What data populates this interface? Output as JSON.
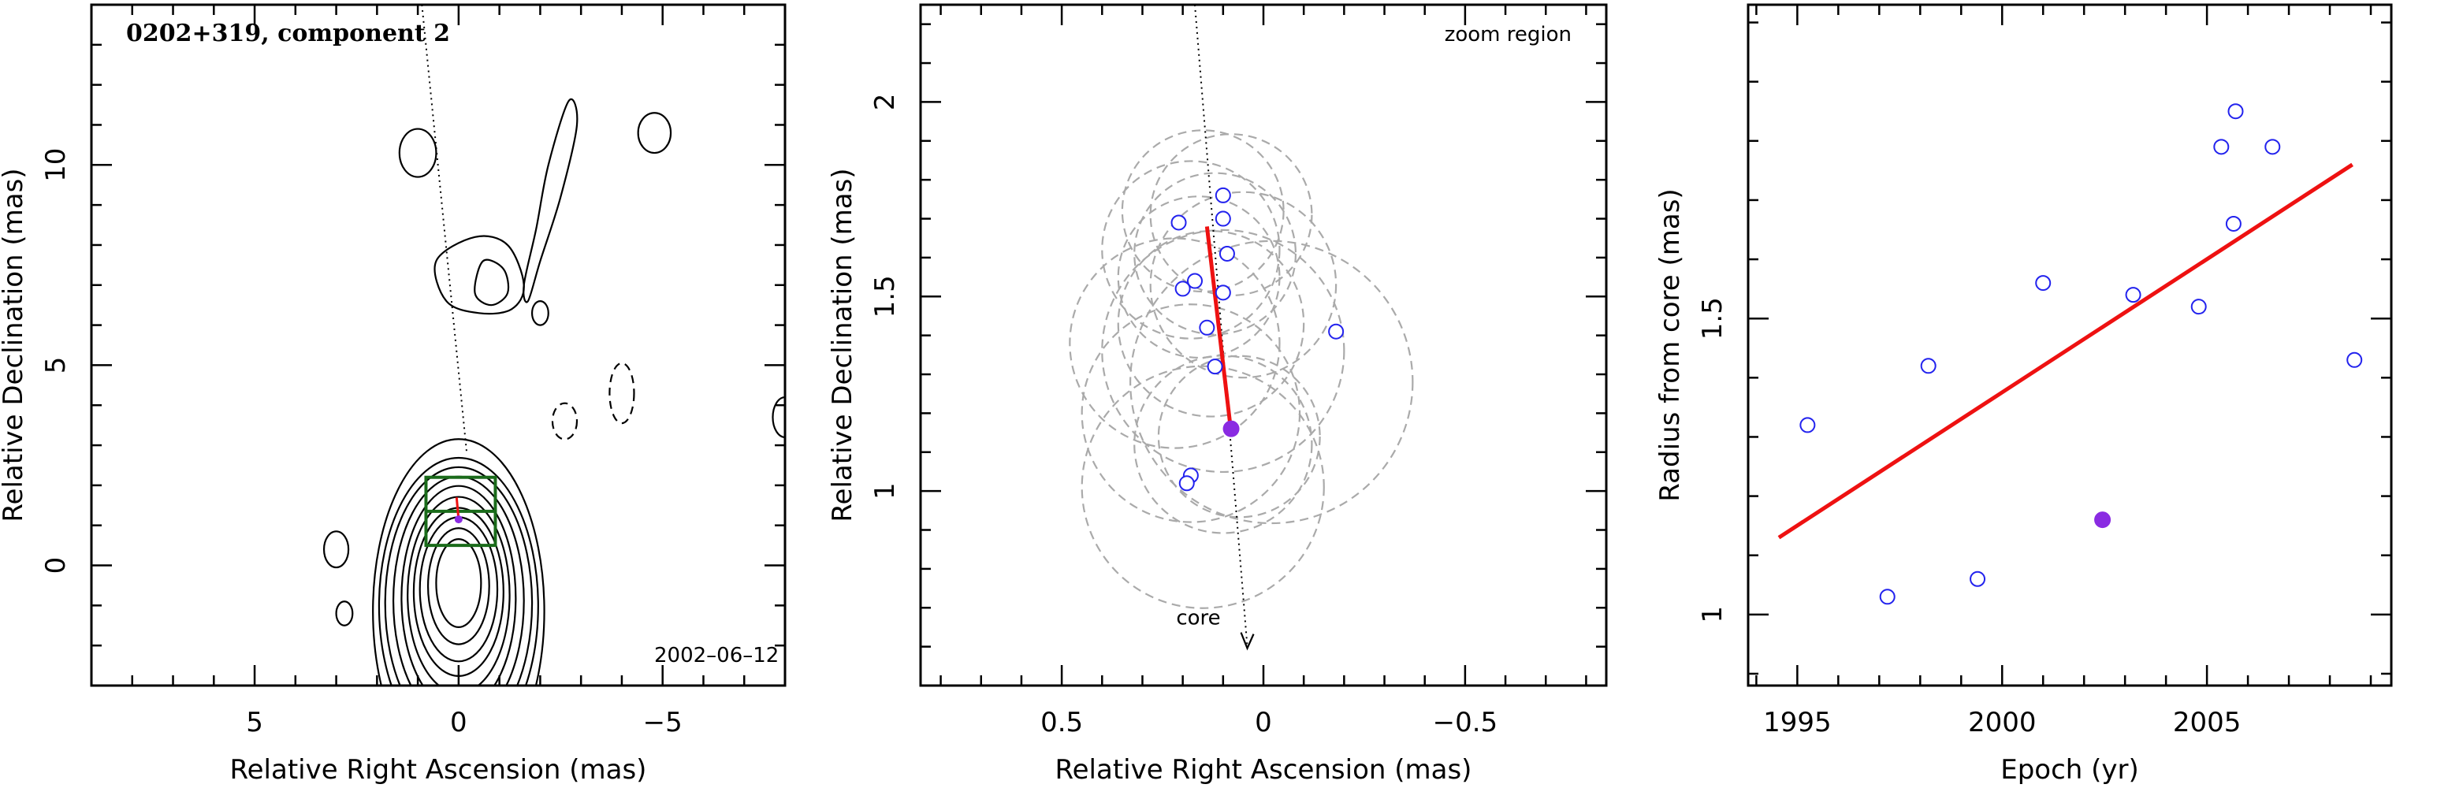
{
  "colors": {
    "contour": "#000000",
    "detection": "#2222ee",
    "highlight": "#8a2be2",
    "fit_line": "#ee1111",
    "uncertainty_circle": "#aaaaaa",
    "zoom_box": "#1a6b1a"
  },
  "chart_data": [
    {
      "type": "contour",
      "title": "0202+319, component 2",
      "annotation": "2002–06–12",
      "xlabel": "Relative Right Ascension (mas)",
      "ylabel": "Relative Declination (mas)",
      "xlim": [
        9,
        -8
      ],
      "ylim": [
        -3,
        14
      ],
      "xticks": [
        5,
        0,
        -5
      ],
      "xtick_labels": [
        "5",
        "0",
        "−5"
      ],
      "yticks": [
        0,
        5,
        10
      ],
      "ytick_labels": [
        "0",
        "5",
        "10"
      ],
      "core_contours": {
        "center": [
          0,
          -0.2
        ],
        "levels": [
          [
            0.55,
            1.1
          ],
          [
            0.75,
            1.45
          ],
          [
            0.95,
            1.8
          ],
          [
            1.1,
            2.1
          ],
          [
            1.25,
            2.45
          ],
          [
            1.4,
            2.8
          ],
          [
            1.6,
            3.1
          ],
          [
            1.8,
            3.4
          ],
          [
            1.95,
            3.7
          ],
          [
            2.1,
            4.3
          ]
        ]
      },
      "jet_contours": [
        [
          [
            0.55,
            7.6
          ],
          [
            -0.4,
            8.2
          ],
          [
            -1.2,
            8.0
          ],
          [
            -1.6,
            7.0
          ],
          [
            -1.3,
            6.4
          ],
          [
            -0.5,
            6.3
          ],
          [
            0.3,
            6.6
          ]
        ],
        [
          [
            -0.6,
            7.6
          ],
          [
            -1.1,
            7.4
          ],
          [
            -1.2,
            6.8
          ],
          [
            -0.8,
            6.5
          ],
          [
            -0.4,
            6.8
          ]
        ],
        [
          [
            -1.6,
            7.0
          ],
          [
            -1.9,
            8.4
          ],
          [
            -2.2,
            10.0
          ],
          [
            -2.7,
            11.6
          ],
          [
            -2.9,
            11.0
          ],
          [
            -2.5,
            9.2
          ],
          [
            -2.0,
            7.6
          ],
          [
            -1.7,
            6.6
          ]
        ]
      ],
      "positive_islands": [
        [
          -4.8,
          10.8,
          0.4,
          0.5
        ],
        [
          1.0,
          10.3,
          0.45,
          0.6
        ],
        [
          3.0,
          0.4,
          0.3,
          0.45
        ],
        [
          2.8,
          -1.2,
          0.2,
          0.3
        ],
        [
          -2.0,
          6.3,
          0.2,
          0.3
        ],
        [
          -8.0,
          3.7,
          0.3,
          0.5
        ]
      ],
      "negative_islands": [
        [
          -4.0,
          4.3,
          0.3,
          0.75
        ],
        [
          -2.6,
          3.6,
          0.3,
          0.45
        ]
      ],
      "zoom_box": {
        "x": [
          0.8,
          -0.9
        ],
        "y": [
          0.5,
          2.2
        ]
      },
      "jet_axis": {
        "from": [
          0.9,
          14
        ],
        "to": [
          -0.2,
          2.8
        ]
      }
    },
    {
      "type": "scatter",
      "annotation": "zoom region",
      "core_label": "core",
      "xlabel": "Relative Right Ascension (mas)",
      "ylabel": "Relative Declination (mas)",
      "xlim": [
        0.85,
        -0.85
      ],
      "ylim": [
        0.5,
        2.25
      ],
      "xticks": [
        0.5,
        0,
        -0.5
      ],
      "xtick_labels": [
        "0.5",
        "0",
        "−0.5"
      ],
      "yticks": [
        1,
        1.5,
        2
      ],
      "ytick_labels": [
        "1",
        "1.5",
        "2"
      ],
      "points": [
        {
          "x": 0.21,
          "y": 1.69
        },
        {
          "x": 0.1,
          "y": 1.76
        },
        {
          "x": 0.1,
          "y": 1.7
        },
        {
          "x": 0.09,
          "y": 1.61
        },
        {
          "x": 0.17,
          "y": 1.54
        },
        {
          "x": 0.2,
          "y": 1.52
        },
        {
          "x": 0.1,
          "y": 1.51
        },
        {
          "x": 0.14,
          "y": 1.42
        },
        {
          "x": -0.18,
          "y": 1.41
        },
        {
          "x": 0.12,
          "y": 1.32
        },
        {
          "x": 0.18,
          "y": 1.04
        },
        {
          "x": 0.19,
          "y": 1.02
        }
      ],
      "highlight": {
        "x": 0.08,
        "y": 1.16
      },
      "uncertainty_circles": [
        [
          0.15,
          1.72,
          0.2
        ],
        [
          0.08,
          1.71,
          0.2
        ],
        [
          0.18,
          1.62,
          0.22
        ],
        [
          0.12,
          1.61,
          0.2
        ],
        [
          0.16,
          1.55,
          0.2
        ],
        [
          0.05,
          1.53,
          0.23
        ],
        [
          0.13,
          1.43,
          0.23
        ],
        [
          0.22,
          1.38,
          0.26
        ],
        [
          0.1,
          1.36,
          0.3
        ],
        [
          -0.02,
          1.28,
          0.35
        ],
        [
          0.18,
          1.2,
          0.27
        ],
        [
          0.1,
          1.12,
          0.22
        ],
        [
          0.15,
          1.01,
          0.3
        ],
        [
          0.06,
          1.14,
          0.2
        ]
      ],
      "fit_line": {
        "x": [
          0.14,
          0.08
        ],
        "y": [
          1.68,
          1.15
        ]
      },
      "jet_axis": {
        "from": [
          0.17,
          2.25
        ],
        "to": [
          0.04,
          0.6
        ]
      }
    },
    {
      "type": "scatter",
      "xlabel": "Epoch (yr)",
      "ylabel": "Radius from core (mas)",
      "xlim": [
        1993.8,
        2009.5
      ],
      "ylim": [
        0.88,
        2.03
      ],
      "xticks": [
        1995,
        2000,
        2005
      ],
      "xtick_labels": [
        "1995",
        "2000",
        "2005"
      ],
      "yticks": [
        1,
        1.5
      ],
      "ytick_labels": [
        "1",
        "1.5"
      ],
      "points": [
        {
          "x": 1995.25,
          "y": 1.32
        },
        {
          "x": 1997.2,
          "y": 1.03
        },
        {
          "x": 1998.2,
          "y": 1.42
        },
        {
          "x": 1999.4,
          "y": 1.06
        },
        {
          "x": 2001.0,
          "y": 1.56
        },
        {
          "x": 2003.2,
          "y": 1.54
        },
        {
          "x": 2004.8,
          "y": 1.52
        },
        {
          "x": 2005.35,
          "y": 1.79
        },
        {
          "x": 2005.7,
          "y": 1.85
        },
        {
          "x": 2005.65,
          "y": 1.66
        },
        {
          "x": 2006.6,
          "y": 1.79
        },
        {
          "x": 2008.6,
          "y": 1.43
        }
      ],
      "highlight": {
        "x": 2002.45,
        "y": 1.16
      },
      "fit_line": {
        "x": [
          1994.55,
          2008.55
        ],
        "y": [
          1.13,
          1.76
        ]
      }
    }
  ]
}
